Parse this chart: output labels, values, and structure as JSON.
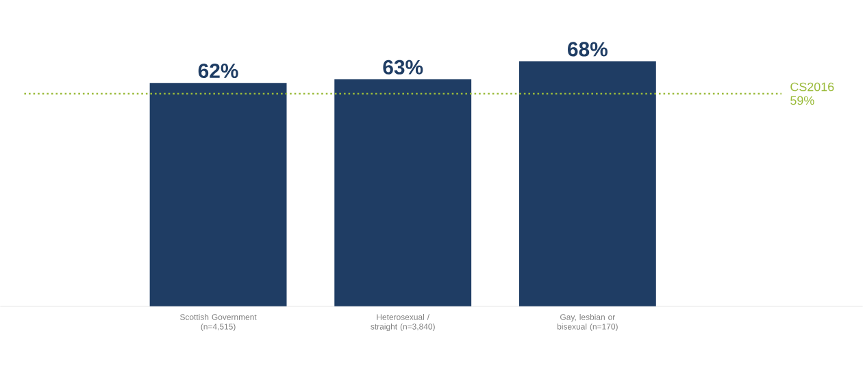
{
  "chart_data": {
    "type": "bar",
    "categories": [
      "Scottish Government (n=4,515)",
      "Heterosexual / straight (n=3,840)",
      "Gay, lesbian or bisexual (n=170)"
    ],
    "values": [
      62,
      63,
      68
    ],
    "color": "#1f3d64",
    "data_labels": true,
    "value_labels": [
      "62%",
      "63%",
      "68%"
    ],
    "ref_lines": [
      {
        "axis": "y",
        "value": 59,
        "label": "CS2016 59%",
        "color": "#9bbb3b",
        "line_style": "dotted"
      }
    ]
  }
}
